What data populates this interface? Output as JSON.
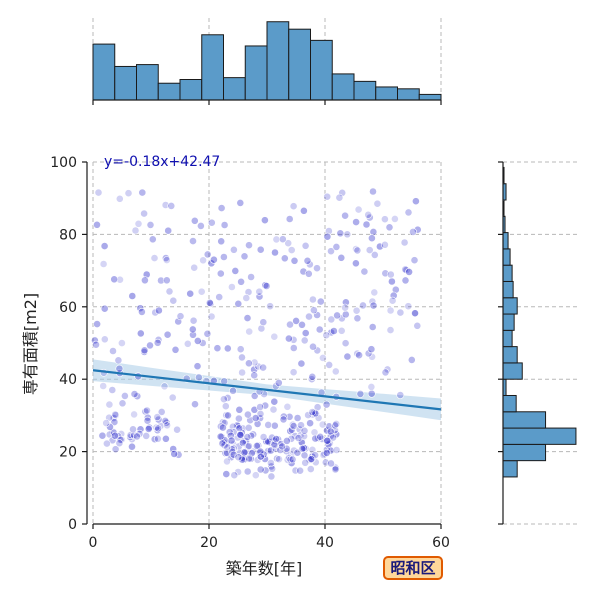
{
  "colors": {
    "hist": "#5b9bc9",
    "point": "#2020c8",
    "trend": "#1f77b4",
    "band": "#a9cce8",
    "grid": "#b8b8b8",
    "badge_bg": "#ffd79a",
    "badge_border": "#e05a00"
  },
  "badge": {
    "label": "昭和区"
  },
  "chart_data": {
    "type": "scatter",
    "xlabel": "築年数[年]",
    "ylabel": "専有面積[m2]",
    "xlim": [
      0,
      60
    ],
    "ylim": [
      0,
      100
    ],
    "x_ticks": [
      0,
      20,
      40,
      60
    ],
    "y_ticks": [
      0,
      20,
      40,
      60,
      80,
      100
    ],
    "grid": true,
    "regression": {
      "label": "y=-0.18x+42.47",
      "slope": -0.18,
      "intercept": 42.47,
      "ci_halfwidth": 2.5
    },
    "top_histogram": {
      "bin_edges": [
        0,
        3.75,
        7.5,
        11.25,
        15,
        18.75,
        22.5,
        26.25,
        30,
        33.75,
        37.5,
        41.25,
        45,
        48.75,
        52.5,
        56.25,
        60
      ],
      "heights": [
        15,
        9,
        9.5,
        4.5,
        5.5,
        17.5,
        6,
        14.5,
        21,
        19,
        16,
        7,
        5,
        3.5,
        3,
        1.5
      ]
    },
    "right_histogram": {
      "bin_edges": [
        13,
        17.5,
        22,
        26.5,
        31,
        35.5,
        40,
        44.5,
        49,
        53.5,
        58,
        62.5,
        67,
        71.5,
        76,
        80.5,
        85,
        89.5,
        94,
        98.5
      ],
      "heights": [
        14,
        42,
        72,
        42,
        13,
        3,
        19,
        14,
        9,
        11,
        14,
        10,
        9,
        7,
        5,
        2,
        1,
        3,
        1
      ]
    },
    "point_count": 520
  }
}
